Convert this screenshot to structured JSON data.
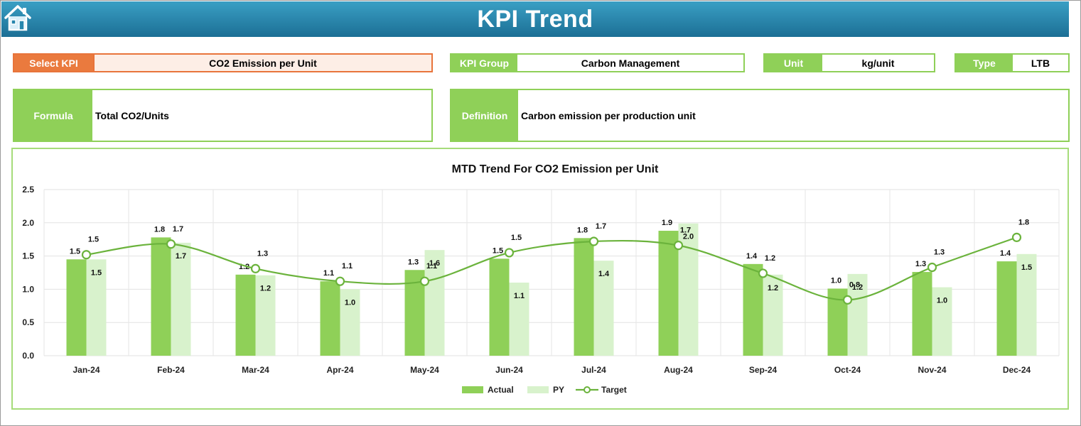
{
  "header": {
    "title": "KPI Trend",
    "home_icon": "home-icon"
  },
  "fields": {
    "select_kpi": {
      "label": "Select KPI",
      "value": "CO2 Emission per Unit"
    },
    "kpi_group": {
      "label": "KPI Group",
      "value": "Carbon Management"
    },
    "unit": {
      "label": "Unit",
      "value": "kg/unit"
    },
    "type": {
      "label": "Type",
      "value": "LTB"
    },
    "formula": {
      "label": "Formula",
      "value": "Total CO2/Units"
    },
    "definition": {
      "label": "Definition",
      "value": "Carbon emission per production unit"
    }
  },
  "colors": {
    "actual": "#8fd058",
    "py": "#d8f2cc",
    "target": "#6bb33c",
    "accent_orange": "#ea7a3e",
    "banner": "#2686ad"
  },
  "chart_data": {
    "type": "bar",
    "title": "MTD Trend For CO2 Emission per Unit",
    "categories": [
      "Jan-24",
      "Feb-24",
      "Mar-24",
      "Apr-24",
      "May-24",
      "Jun-24",
      "Jul-24",
      "Aug-24",
      "Sep-24",
      "Oct-24",
      "Nov-24",
      "Dec-24"
    ],
    "series": [
      {
        "name": "Actual",
        "kind": "bar",
        "values": [
          1.45,
          1.78,
          1.22,
          1.12,
          1.29,
          1.46,
          1.77,
          1.88,
          1.38,
          1.01,
          1.26,
          1.42
        ],
        "labels": [
          "1.5",
          "1.8",
          "1.2",
          "1.1",
          "1.3",
          "1.5",
          "1.8",
          "1.9",
          "1.4",
          "1.0",
          "1.3",
          "1.4"
        ]
      },
      {
        "name": "PY",
        "kind": "bar",
        "values": [
          1.45,
          1.7,
          1.21,
          1.0,
          1.59,
          1.1,
          1.43,
          1.99,
          1.22,
          1.23,
          1.03,
          1.53
        ],
        "labels": [
          "1.5",
          "1.7",
          "1.2",
          "1.0",
          "1.6",
          "1.1",
          "1.4",
          "2.0",
          "1.2",
          "1.2",
          "1.0",
          "1.5"
        ]
      },
      {
        "name": "Target",
        "kind": "line",
        "values": [
          1.52,
          1.68,
          1.31,
          1.12,
          1.12,
          1.55,
          1.72,
          1.66,
          1.24,
          0.84,
          1.33,
          1.78
        ],
        "labels": [
          "1.5",
          "1.7",
          "1.3",
          "1.1",
          "1.1",
          "1.5",
          "1.7",
          "1.7",
          "1.2",
          "0.8",
          "1.3",
          "1.8"
        ]
      }
    ],
    "yticks": [
      "0.0",
      "0.5",
      "1.0",
      "1.5",
      "2.0",
      "2.5"
    ],
    "ylim": [
      0,
      2.5
    ],
    "grid": true,
    "legend": "bottom"
  }
}
